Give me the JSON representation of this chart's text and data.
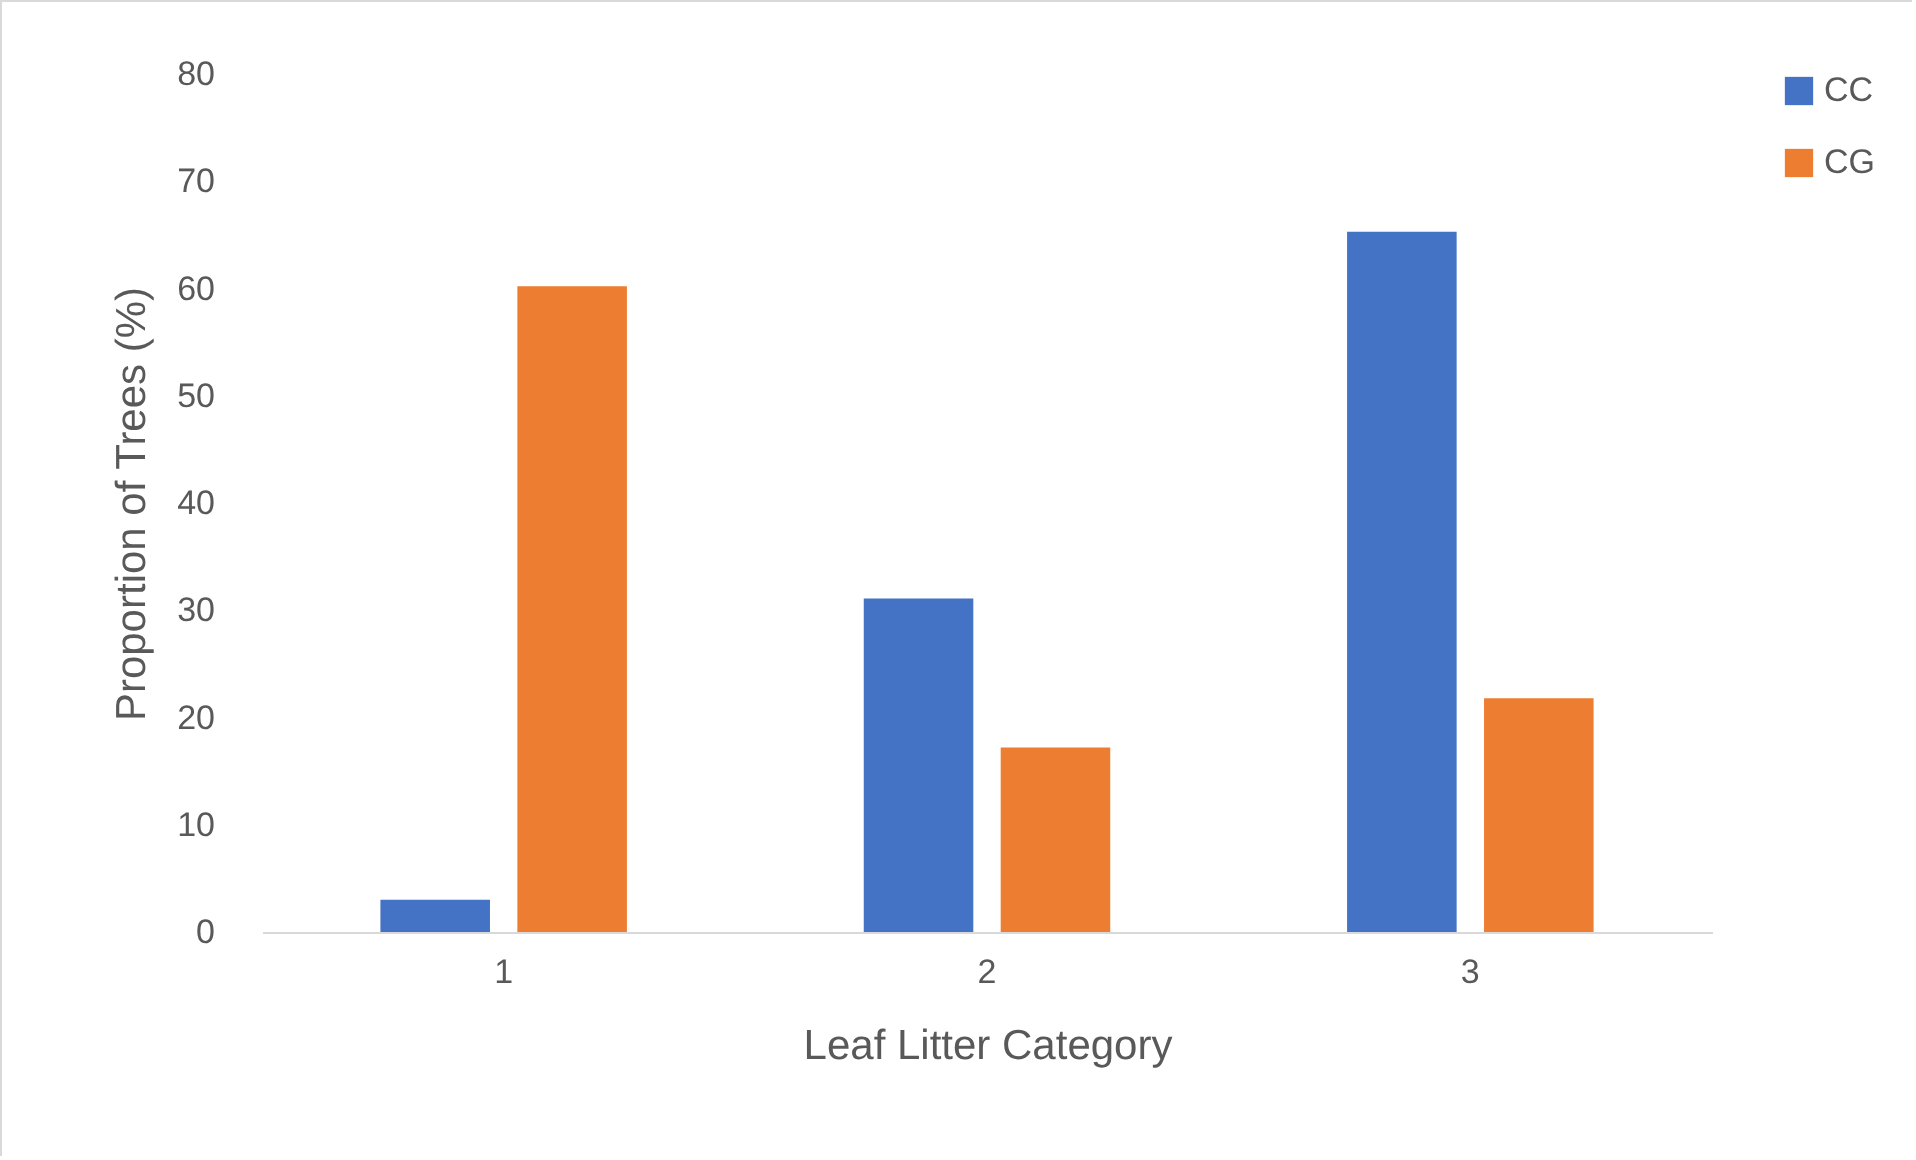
{
  "chart_data": {
    "type": "bar",
    "xlabel": "Leaf Litter Category",
    "ylabel": "Proportion of Trees (%)",
    "categories": [
      "1",
      "2",
      "3"
    ],
    "series": [
      {
        "name": "CC",
        "color": "#4472c4",
        "values": [
          3.0,
          31.1,
          65.3
        ]
      },
      {
        "name": "CG",
        "color": "#ed7d31",
        "values": [
          60.2,
          17.2,
          21.8
        ]
      }
    ],
    "ylim": [
      0,
      80
    ],
    "yticks": [
      0,
      10,
      20,
      30,
      40,
      50,
      60,
      70,
      80
    ],
    "grid": false,
    "legend": "right"
  }
}
